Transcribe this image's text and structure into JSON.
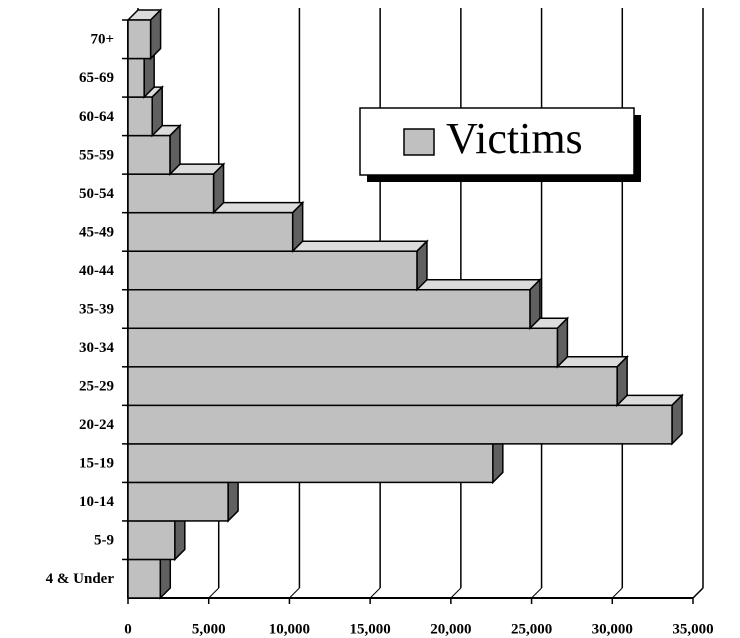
{
  "chart_data": {
    "type": "bar3d",
    "orientation": "horizontal",
    "categories": [
      "4 & Under",
      "5-9",
      "10-14",
      "15-19",
      "20-24",
      "25-29",
      "30-34",
      "35-39",
      "40-44",
      "45-49",
      "50-54",
      "55-59",
      "60-64",
      "65-69",
      "70+"
    ],
    "series": [
      {
        "name": "Victims",
        "color": "#c0c0c0",
        "values": [
          2000,
          2900,
          6200,
          22600,
          33700,
          30300,
          26600,
          24900,
          17900,
          10200,
          5300,
          2600,
          1500,
          1000,
          1400
        ]
      }
    ],
    "xlim": [
      0,
      35000
    ],
    "xticks": [
      0,
      {
        "value": 5000,
        "label": "5,000"
      },
      {
        "value": 10000,
        "label": "10,000"
      },
      {
        "value": 15000,
        "label": "15,000"
      },
      {
        "value": 20000,
        "label": "20,000"
      },
      {
        "value": 25000,
        "label": "25,000"
      },
      {
        "value": 30000,
        "label": "30,000"
      },
      {
        "value": 35000,
        "label": "35,000"
      }
    ],
    "grid": true,
    "legend": "upper right"
  }
}
